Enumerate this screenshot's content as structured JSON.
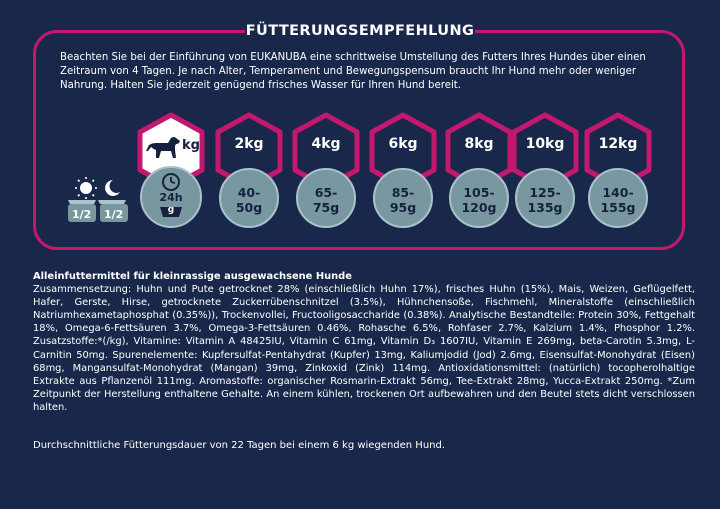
{
  "title": "FÜTTERUNGSEMPFEHLUNG",
  "intro": "Beachten Sie bei der Einführung von EUKANUBA eine schrittweise Umstellung des Futters Ihres Hundes über einen Zeitraum von 4 Tagen. Je nach Alter, Temperament und Bewegungspensum braucht Ihr Hund mehr oder weniger Nahrung. Halten Sie jederzeit genügend frisches Wasser für Ihren Hund bereit.",
  "feeding": {
    "header_unit": "kg",
    "header_daily": "24h",
    "header_unit_g": "g",
    "day_split": [
      "1/2",
      "1/2"
    ],
    "weights": [
      "2kg",
      "4kg",
      "6kg",
      "8kg",
      "10kg",
      "12kg"
    ],
    "amounts": [
      [
        "40-",
        "50g"
      ],
      [
        "65-",
        "75g"
      ],
      [
        "85-",
        "95g"
      ],
      [
        "105-",
        "120g"
      ],
      [
        "125-",
        "135g"
      ],
      [
        "140-",
        "155g"
      ]
    ]
  },
  "ingredients": {
    "heading": "Alleinfuttermittel für kleinrassige ausgewachsene Hunde",
    "text": "Zusammensetzung: Huhn und Pute getrocknet 28% (einschließlich Huhn 17%), frisches Huhn (15%), Mais, Weizen, Geflügelfett, Hafer, Gerste, Hirse, getrocknete Zuckerrübenschnitzel (3.5%), Hühnchensoße, Fischmehl, Mineralstoffe (einschließlich Natriumhexametaphosphat (0.35%)), Trockenvollei, Fructooligosaccharide (0.38%). Analytische Bestandteile: Protein 30%, Fettgehalt 18%, Omega-6-Fettsäuren 3.7%, Omega-3-Fettsäuren 0.46%, Rohasche 6.5%, Rohfaser 2.7%, Kalzium 1.4%, Phosphor 1.2%. Zusatzstoffe:*(/kg), Vitamine: Vitamin A 48425IU, Vitamin C 61mg, Vitamin D₃ 1607IU, Vitamin E 269mg, beta-Carotin 5.3mg, L-Carnitin 50mg. Spurenelemente: Kupfersulfat-Pentahydrat (Kupfer) 13mg, Kaliumjodid (Jod) 2.6mg, Eisensulfat-Monohydrat (Eisen) 68mg, Mangansulfat-Monohydrat (Mangan) 39mg, Zinkoxid (Zink) 114mg. Antioxidationsmittel: (natürlich) tocopherolhaltige Extrakte aus Pflanzenöl 111mg. Aromastoffe: organischer Rosmarin-Extrakt 56mg, Tee-Extrakt 28mg, Yucca-Extrakt 250mg. *Zum Zeitpunkt der Herstellung enthaltene Gehalte. An einem kühlen, trockenen Ort aufbewahren und den Beutel stets dicht verschlossen halten."
  },
  "duration": "Durchschnittliche Fütterungsdauer von 22 Tagen bei einem 6 kg wiegenden Hund.",
  "colors": {
    "background": "#19284a",
    "accent": "#c4186f",
    "circle": "#7997a0",
    "circle_text": "#14223f"
  },
  "icons": [
    "dog-icon",
    "clock-icon",
    "bowl-icon",
    "sun-icon",
    "moon-icon"
  ]
}
